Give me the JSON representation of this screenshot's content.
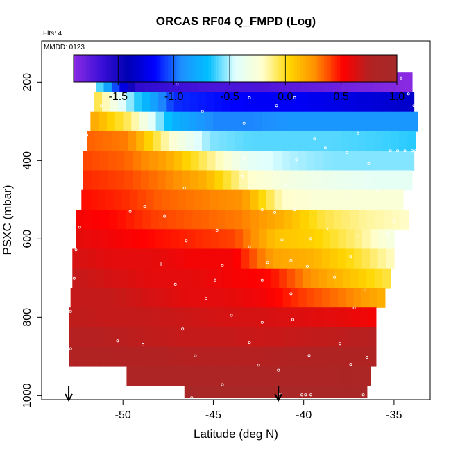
{
  "chart_data": {
    "type": "heatmap",
    "title": "ORCAS RF04 Q_FMPD (Log)",
    "corner_labels": {
      "flights": "Flts: 4",
      "date": "MMDD: 0123"
    },
    "xlabel": "Latitude (deg N)",
    "ylabel": "PSXC (mbar)",
    "xlim": [
      -54.5,
      -33.0
    ],
    "ylim": [
      1010,
      95
    ],
    "x_ticks": [
      -50,
      -45,
      -40,
      -35
    ],
    "x_tick_labels": [
      "-50",
      "-45",
      "-40",
      "-35"
    ],
    "y_ticks": [
      200,
      400,
      600,
      800,
      1000
    ],
    "y_tick_labels": [
      "200",
      "400",
      "600",
      "800",
      "1000"
    ],
    "y_axis_reversed": true,
    "colorbar": {
      "min": -1.9,
      "max": 1.0,
      "ticks": [
        -1.5,
        -1.0,
        -0.5,
        0.0,
        0.5,
        1.0
      ],
      "tick_labels": [
        "-1.5",
        "-1.0",
        "-0.5",
        "0.0",
        "0.5",
        "1.0"
      ],
      "colors": [
        "#8b2be2",
        "#3d10d8",
        "#0000b4",
        "#0000ff",
        "#1e90ff",
        "#00bfff",
        "#e0ffff",
        "#ffffd0",
        "#ffd700",
        "#ff8c00",
        "#ff0000",
        "#b22222",
        "#a52a2a"
      ]
    },
    "pressure_layers": [
      {
        "p_top": 175,
        "p_bot": 225,
        "x_start": -51.5,
        "x_end": -34.0,
        "values_west_to_east": [
          -0.5,
          -1.6,
          -1.65,
          -1.7,
          -1.7,
          -1.75,
          -1.8,
          -1.85,
          -1.9
        ]
      },
      {
        "p_top": 225,
        "p_bot": 275,
        "x_start": -51.6,
        "x_end": -33.9,
        "values_west_to_east": [
          0.0,
          -0.6,
          -1.1,
          -1.15,
          -1.2,
          -1.2,
          -1.25,
          -1.3,
          -1.35
        ]
      },
      {
        "p_top": 275,
        "p_bot": 325,
        "x_start": -51.8,
        "x_end": -33.7,
        "values_west_to_east": [
          0.2,
          -0.1,
          -0.75,
          -0.95,
          -0.95,
          -0.9,
          -0.9,
          -0.9,
          -0.9
        ]
      },
      {
        "p_top": 325,
        "p_bot": 375,
        "x_start": -52.0,
        "x_end": -33.8,
        "values_west_to_east": [
          0.35,
          0.3,
          -0.2,
          -0.55,
          -0.6,
          -0.6,
          -0.6,
          -0.62,
          -0.65
        ]
      },
      {
        "p_top": 375,
        "p_bot": 425,
        "x_start": -52.2,
        "x_end": -33.9,
        "values_west_to_east": [
          0.4,
          0.35,
          0.2,
          -0.1,
          -0.4,
          -0.5,
          -0.55,
          -0.55,
          -0.55
        ]
      },
      {
        "p_top": 425,
        "p_bot": 475,
        "x_start": -52.2,
        "x_end": -34.0,
        "values_west_to_east": [
          0.45,
          0.4,
          0.3,
          0.15,
          -0.2,
          -0.3,
          -0.35,
          -0.4,
          -0.4
        ]
      },
      {
        "p_top": 475,
        "p_bot": 525,
        "x_start": -52.3,
        "x_end": -34.5,
        "values_west_to_east": [
          0.5,
          0.45,
          0.35,
          0.3,
          0.25,
          -0.2,
          -0.25,
          -0.25,
          -0.25
        ]
      },
      {
        "p_top": 525,
        "p_bot": 575,
        "x_start": -52.6,
        "x_end": -34.2,
        "values_west_to_east": [
          0.55,
          0.5,
          0.4,
          0.35,
          0.3,
          0.15,
          -0.05,
          -0.15,
          -0.2
        ]
      },
      {
        "p_top": 575,
        "p_bot": 625,
        "x_start": -52.6,
        "x_end": -35.0,
        "values_west_to_east": [
          0.6,
          0.55,
          0.5,
          0.45,
          0.4,
          0.1,
          0.05,
          -0.1,
          -0.3
        ]
      },
      {
        "p_top": 625,
        "p_bot": 675,
        "x_start": -52.8,
        "x_end": -35.0,
        "values_west_to_east": [
          0.65,
          0.6,
          0.6,
          0.55,
          0.55,
          0.2,
          0.15,
          0.0,
          -0.2
        ]
      },
      {
        "p_top": 675,
        "p_bot": 725,
        "x_start": -52.8,
        "x_end": -35.2,
        "values_west_to_east": [
          0.7,
          0.65,
          0.6,
          0.6,
          0.55,
          0.5,
          0.25,
          0.1,
          -0.05
        ]
      },
      {
        "p_top": 725,
        "p_bot": 775,
        "x_start": -52.9,
        "x_end": -35.5,
        "values_west_to_east": [
          0.7,
          0.7,
          0.65,
          0.6,
          0.6,
          0.55,
          0.4,
          0.3,
          0.15
        ]
      },
      {
        "p_top": 775,
        "p_bot": 825,
        "x_start": -53.0,
        "x_end": -36.0,
        "values_west_to_east": [
          0.72,
          0.7,
          0.7,
          0.68,
          0.65,
          0.65,
          0.62,
          0.6,
          0.55
        ]
      },
      {
        "p_top": 825,
        "p_bot": 875,
        "x_start": -53.0,
        "x_end": -36.0,
        "values_west_to_east": [
          0.75,
          0.74,
          0.72,
          0.7,
          0.7,
          0.68,
          0.7,
          0.72,
          0.75
        ]
      },
      {
        "p_top": 875,
        "p_bot": 925,
        "x_start": -53.0,
        "x_end": -36.0,
        "values_west_to_east": [
          0.78,
          0.77,
          0.76,
          0.75,
          0.75,
          0.75,
          0.78,
          0.8,
          0.8
        ]
      },
      {
        "p_top": 925,
        "p_bot": 975,
        "x_start": -49.8,
        "x_end": -36.3,
        "values_west_to_east": [
          0.85,
          0.85,
          0.85,
          0.84,
          0.85,
          0.85,
          0.86,
          0.86,
          0.87
        ]
      },
      {
        "p_top": 975,
        "p_bot": 1005,
        "x_start": -46.6,
        "x_end": -36.5,
        "values_west_to_east": [
          0.9,
          0.9,
          0.9,
          0.9,
          0.9,
          0.9,
          0.9,
          0.9,
          0.9
        ]
      }
    ],
    "sample_points": [
      [
        -51.0,
        190
      ],
      [
        -50.5,
        190
      ],
      [
        -50.0,
        190
      ],
      [
        -49.5,
        190
      ],
      [
        -49.0,
        190
      ],
      [
        -48.5,
        190
      ],
      [
        -48.0,
        190
      ],
      [
        -47.5,
        190
      ],
      [
        -47.1,
        190
      ],
      [
        -39.0,
        190
      ],
      [
        -38.5,
        190
      ],
      [
        -38.0,
        190
      ],
      [
        -37.5,
        190
      ],
      [
        -37.0,
        190
      ],
      [
        -36.5,
        190
      ],
      [
        -36.0,
        190
      ],
      [
        -35.5,
        190
      ],
      [
        -35.0,
        190
      ],
      [
        -34.6,
        190
      ],
      [
        -47.0,
        205
      ],
      [
        -43.0,
        240
      ],
      [
        -40.5,
        240
      ],
      [
        -34.2,
        230
      ],
      [
        -33.9,
        260
      ],
      [
        -51.2,
        260
      ],
      [
        -45.6,
        275
      ],
      [
        -43.3,
        305
      ],
      [
        -41.5,
        260
      ],
      [
        -37.0,
        330
      ],
      [
        -39.4,
        345
      ],
      [
        -52.0,
        335
      ],
      [
        -52.1,
        362
      ],
      [
        -35.2,
        375
      ],
      [
        -34.8,
        375
      ],
      [
        -34.4,
        375
      ],
      [
        -34.0,
        375
      ],
      [
        -33.8,
        375
      ],
      [
        -37.6,
        380
      ],
      [
        -38.8,
        368
      ],
      [
        -40.4,
        398
      ],
      [
        -36.4,
        408
      ],
      [
        -43.3,
        393
      ],
      [
        -52.3,
        432
      ],
      [
        -43.4,
        440
      ],
      [
        -46.6,
        470
      ],
      [
        -41.0,
        462
      ],
      [
        -37.5,
        488
      ],
      [
        -35.9,
        478
      ],
      [
        -48.8,
        518
      ],
      [
        -49.6,
        530
      ],
      [
        -42.3,
        525
      ],
      [
        -41.6,
        532
      ],
      [
        -40.5,
        525
      ],
      [
        -52.4,
        570
      ],
      [
        -47.7,
        542
      ],
      [
        -44.8,
        578
      ],
      [
        -38.6,
        575
      ],
      [
        -35.0,
        555
      ],
      [
        -35.4,
        585
      ],
      [
        -46.5,
        605
      ],
      [
        -41.2,
        602
      ],
      [
        -39.6,
        600
      ],
      [
        -37.0,
        592
      ],
      [
        -43.0,
        620
      ],
      [
        -52.6,
        628
      ],
      [
        -47.9,
        664
      ],
      [
        -44.5,
        668
      ],
      [
        -42.0,
        660
      ],
      [
        -40.7,
        656
      ],
      [
        -37.4,
        646
      ],
      [
        -39.8,
        670
      ],
      [
        -34.9,
        650
      ],
      [
        -44.9,
        705
      ],
      [
        -47.1,
        716
      ],
      [
        -42.3,
        705
      ],
      [
        -40.7,
        740
      ],
      [
        -38.3,
        698
      ],
      [
        -52.7,
        700
      ],
      [
        -36.6,
        730
      ],
      [
        -35.2,
        740
      ],
      [
        -37.2,
        776
      ],
      [
        -45.4,
        752
      ],
      [
        -44.0,
        795
      ],
      [
        -42.3,
        813
      ],
      [
        -40.6,
        806
      ],
      [
        -52.9,
        785
      ],
      [
        -46.7,
        830
      ],
      [
        -50.3,
        860
      ],
      [
        -48.9,
        870
      ],
      [
        -43.0,
        865
      ],
      [
        -38.0,
        867
      ],
      [
        -36.5,
        902
      ],
      [
        -52.9,
        880
      ],
      [
        -46.0,
        898
      ],
      [
        -42.5,
        922
      ],
      [
        -39.7,
        897
      ],
      [
        -41.4,
        935
      ],
      [
        -37.4,
        920
      ],
      [
        -44.5,
        972
      ],
      [
        -46.7,
        990
      ],
      [
        -41.3,
        996
      ],
      [
        -40.1,
        998
      ],
      [
        -39.9,
        998
      ],
      [
        -39.6,
        998
      ],
      [
        -36.7,
        998
      ],
      [
        -36.6,
        1010
      ],
      [
        -46.2,
        1005
      ]
    ],
    "arrows": [
      {
        "x": -53.0,
        "direction": "down"
      },
      {
        "x": -41.4,
        "direction": "down"
      }
    ]
  }
}
